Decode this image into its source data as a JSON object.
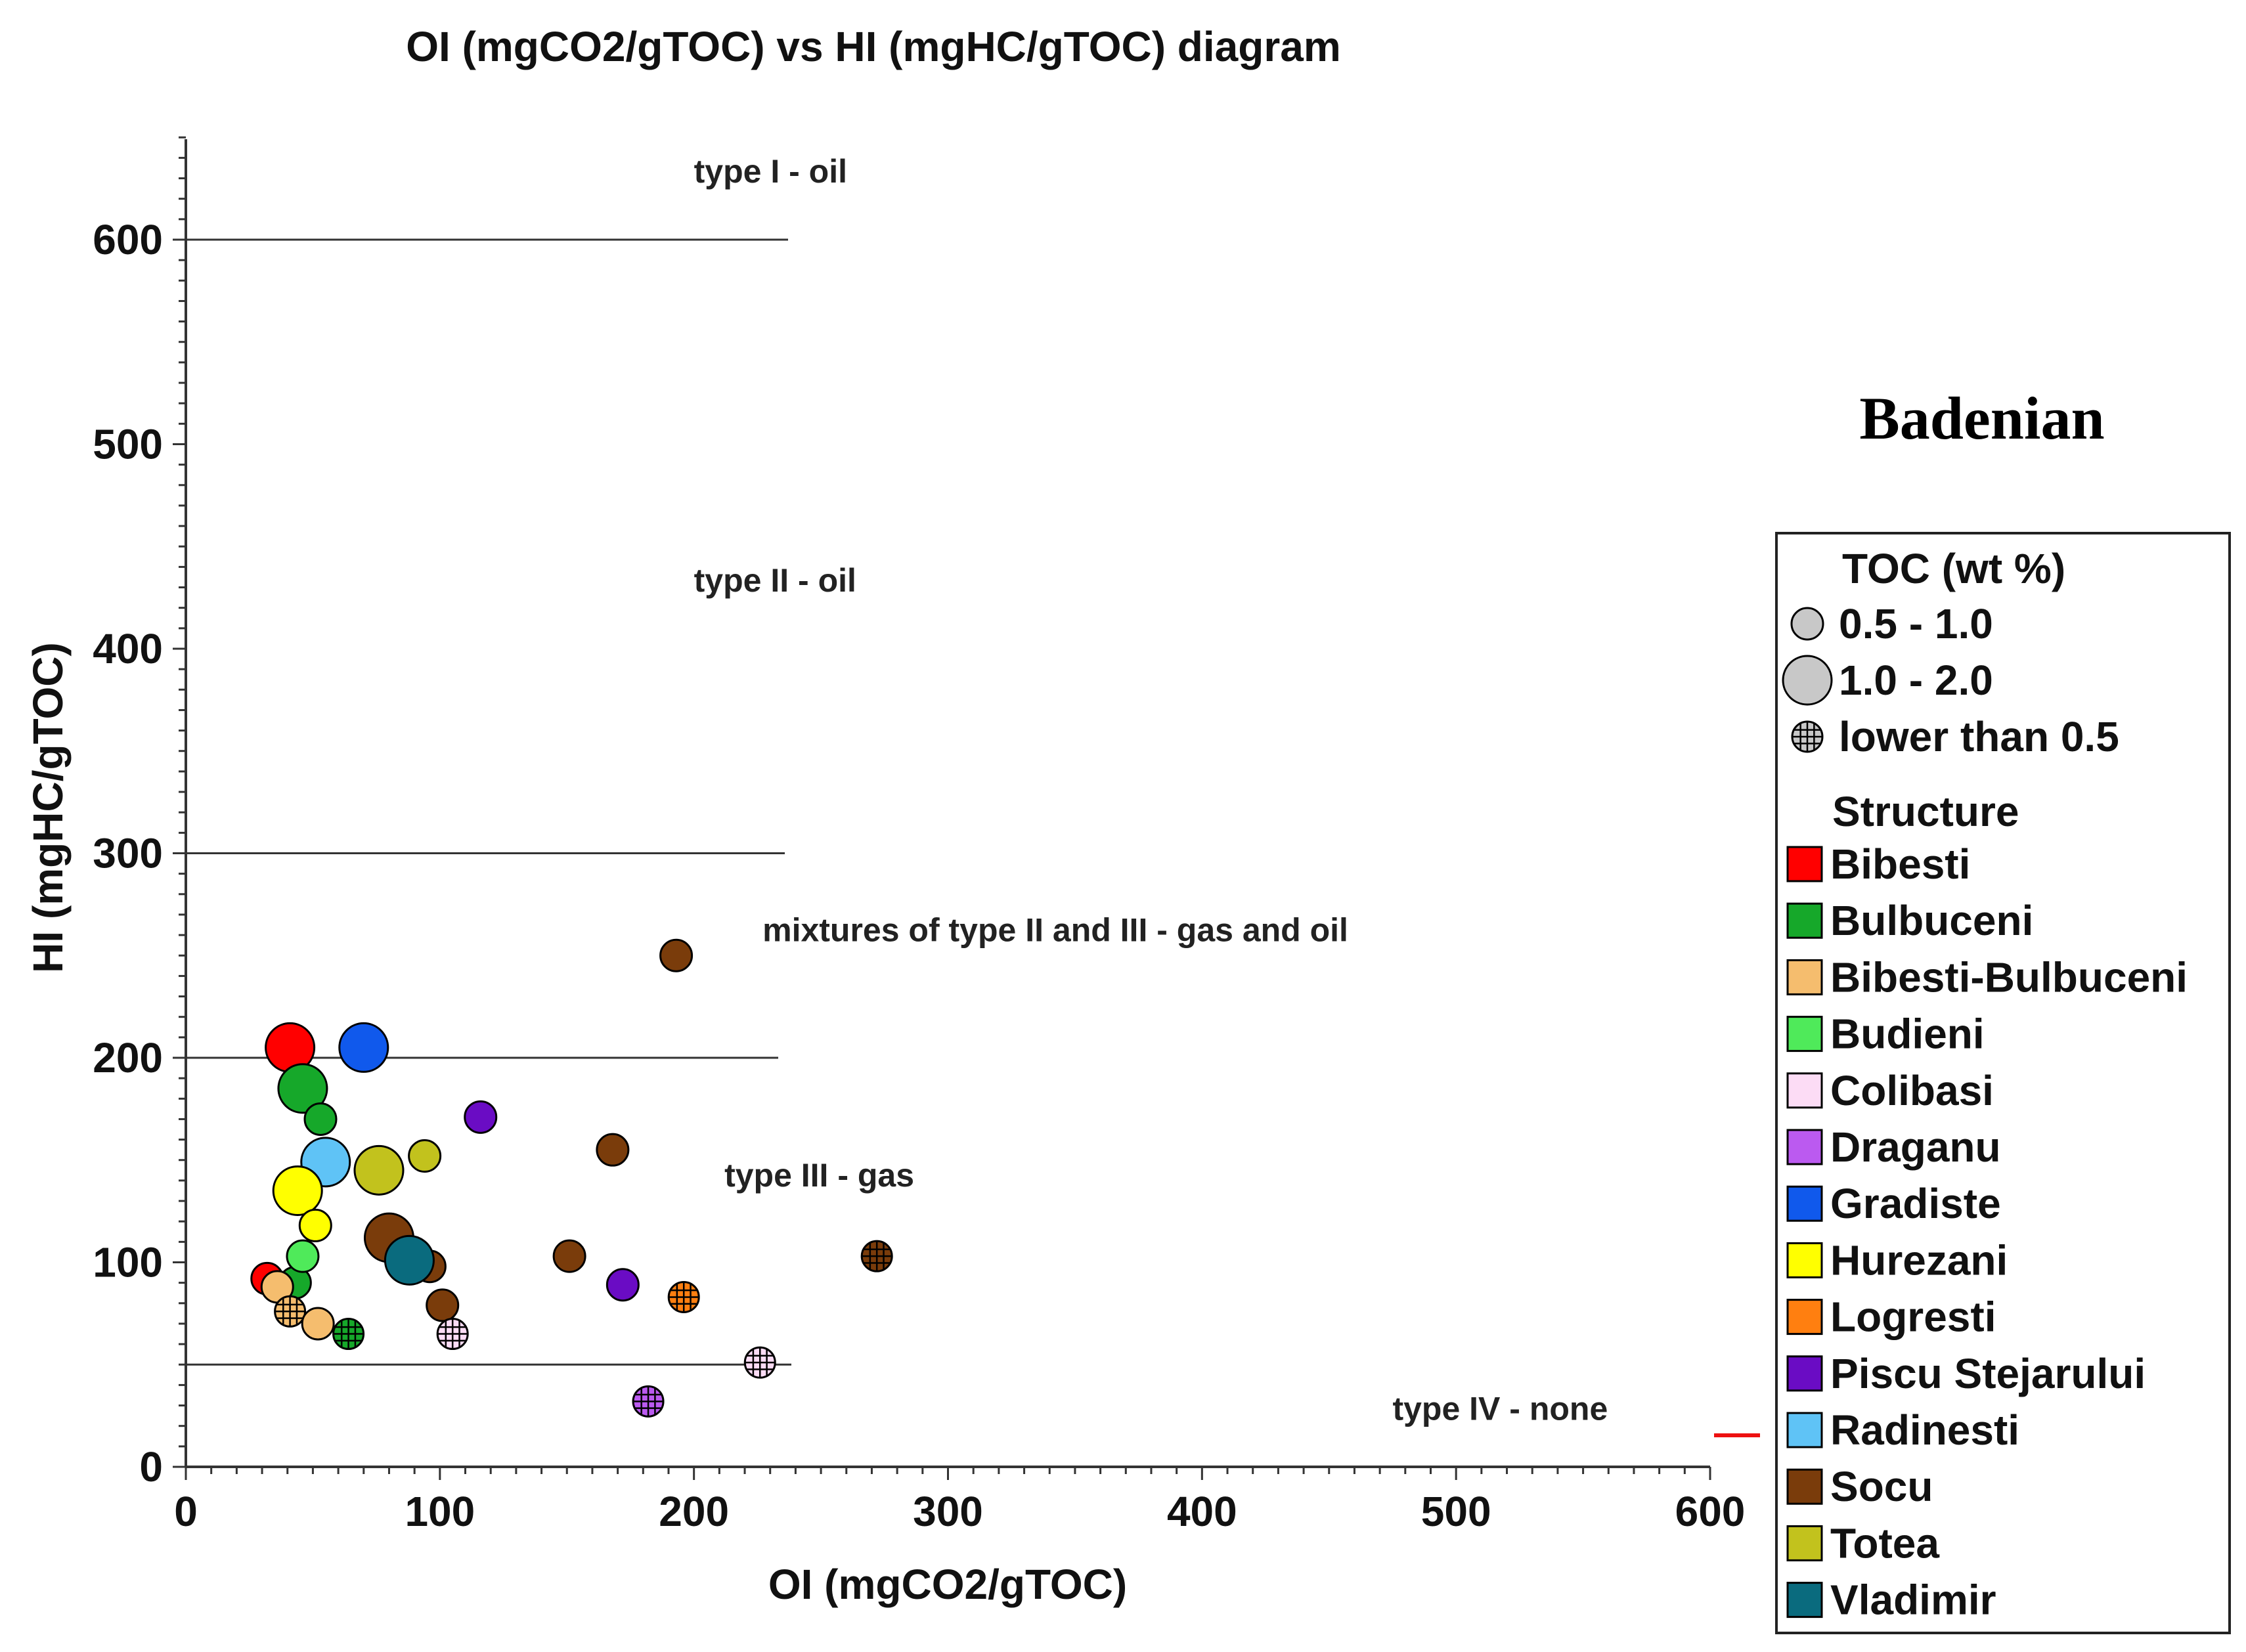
{
  "chart_data": {
    "type": "scatter",
    "title": "OI (mgCO2/gTOC) vs HI (mgHC/gTOC) diagram",
    "xlabel": "OI (mgCO2/gTOC)",
    "ylabel": "HI (mgHC/gTOC)",
    "xlim": [
      0,
      600
    ],
    "ylim": [
      0,
      650
    ],
    "x_ticks": [
      "0",
      "100",
      "200",
      "300",
      "400",
      "500",
      "600"
    ],
    "y_ticks": [
      "0",
      "100",
      "200",
      "300",
      "400",
      "500",
      "600"
    ],
    "annotation": "Badenian",
    "zone_lines": [
      600,
      300,
      200,
      50
    ],
    "zones": [
      {
        "label": "type I - oil",
        "x": 200,
        "y": 628
      },
      {
        "label": "type II - oil",
        "x": 200,
        "y": 428
      },
      {
        "label": "mixtures of type II and III - gas and oil",
        "x": 227,
        "y": 257
      },
      {
        "label": "type III - gas",
        "x": 212,
        "y": 137
      },
      {
        "label": "type IV - none",
        "x": 475,
        "y": 23
      }
    ],
    "legend": {
      "size_title": "TOC (wt %)",
      "size_entries": [
        {
          "label": "0.5 - 1.0",
          "symbol": "small"
        },
        {
          "label": "1.0 - 2.0",
          "symbol": "large"
        },
        {
          "label": "lower than 0.5",
          "symbol": "cross"
        }
      ],
      "structure_title": "Structure",
      "structures": [
        {
          "name": "Bibesti",
          "color": "#ff0000"
        },
        {
          "name": "Bulbuceni",
          "color": "#16a82a"
        },
        {
          "name": "Bibesti-Bulbuceni",
          "color": "#f5bd6e"
        },
        {
          "name": "Budieni",
          "color": "#4fea5a"
        },
        {
          "name": "Colibasi",
          "color": "#fcdcf5"
        },
        {
          "name": "Draganu",
          "color": "#bb5af0"
        },
        {
          "name": "Gradiste",
          "color": "#1059ec"
        },
        {
          "name": "Hurezani",
          "color": "#ffff00"
        },
        {
          "name": "Logresti",
          "color": "#ff7f10"
        },
        {
          "name": "Piscu Stejarului",
          "color": "#6a0cc4"
        },
        {
          "name": "Radinesti",
          "color": "#5fc3f6"
        },
        {
          "name": "Socu",
          "color": "#7a3c0b"
        },
        {
          "name": "Totea",
          "color": "#c2c21d"
        },
        {
          "name": "Vladimir",
          "color": "#0a6b7e"
        }
      ]
    },
    "points": [
      {
        "structure": "Bibesti",
        "oi": 41,
        "hi": 205,
        "toc": "1.0 - 2.0"
      },
      {
        "structure": "Bibesti",
        "oi": 32,
        "hi": 92,
        "toc": "0.5 - 1.0"
      },
      {
        "structure": "Gradiste",
        "oi": 70,
        "hi": 205,
        "toc": "1.0 - 2.0"
      },
      {
        "structure": "Bulbuceni",
        "oi": 46,
        "hi": 185,
        "toc": "1.0 - 2.0"
      },
      {
        "structure": "Bulbuceni",
        "oi": 53,
        "hi": 170,
        "toc": "0.5 - 1.0"
      },
      {
        "structure": "Bulbuceni",
        "oi": 43,
        "hi": 90,
        "toc": "0.5 - 1.0"
      },
      {
        "structure": "Bulbuceni",
        "oi": 64,
        "hi": 65,
        "toc": "lower than 0.5"
      },
      {
        "structure": "Radinesti",
        "oi": 55,
        "hi": 149,
        "toc": "1.0 - 2.0"
      },
      {
        "structure": "Hurezani",
        "oi": 44,
        "hi": 135,
        "toc": "1.0 - 2.0"
      },
      {
        "structure": "Hurezani",
        "oi": 51,
        "hi": 118,
        "toc": "0.5 - 1.0"
      },
      {
        "structure": "Budieni",
        "oi": 46,
        "hi": 103,
        "toc": "0.5 - 1.0"
      },
      {
        "structure": "Bibesti-Bulbuceni",
        "oi": 36,
        "hi": 88,
        "toc": "0.5 - 1.0"
      },
      {
        "structure": "Bibesti-Bulbuceni",
        "oi": 41,
        "hi": 76,
        "toc": "lower than 0.5"
      },
      {
        "structure": "Bibesti-Bulbuceni",
        "oi": 52,
        "hi": 70,
        "toc": "0.5 - 1.0"
      },
      {
        "structure": "Totea",
        "oi": 76,
        "hi": 145,
        "toc": "1.0 - 2.0"
      },
      {
        "structure": "Totea",
        "oi": 94,
        "hi": 152,
        "toc": "0.5 - 1.0"
      },
      {
        "structure": "Socu",
        "oi": 80,
        "hi": 112,
        "toc": "1.0 - 2.0"
      },
      {
        "structure": "Socu",
        "oi": 96,
        "hi": 98,
        "toc": "0.5 - 1.0"
      },
      {
        "structure": "Socu",
        "oi": 101,
        "hi": 79,
        "toc": "0.5 - 1.0"
      },
      {
        "structure": "Socu",
        "oi": 151,
        "hi": 103,
        "toc": "0.5 - 1.0"
      },
      {
        "structure": "Socu",
        "oi": 168,
        "hi": 155,
        "toc": "0.5 - 1.0"
      },
      {
        "structure": "Socu",
        "oi": 193,
        "hi": 250,
        "toc": "0.5 - 1.0"
      },
      {
        "structure": "Socu",
        "oi": 272,
        "hi": 103,
        "toc": "lower than 0.5"
      },
      {
        "structure": "Vladimir",
        "oi": 88,
        "hi": 101,
        "toc": "1.0 - 2.0"
      },
      {
        "structure": "Piscu Stejarului",
        "oi": 116,
        "hi": 171,
        "toc": "0.5 - 1.0"
      },
      {
        "structure": "Piscu Stejarului",
        "oi": 172,
        "hi": 89,
        "toc": "0.5 - 1.0"
      },
      {
        "structure": "Colibasi",
        "oi": 105,
        "hi": 65,
        "toc": "lower than 0.5"
      },
      {
        "structure": "Colibasi",
        "oi": 226,
        "hi": 51,
        "toc": "lower than 0.5"
      },
      {
        "structure": "Draganu",
        "oi": 182,
        "hi": 32,
        "toc": "lower than 0.5"
      },
      {
        "structure": "Logresti",
        "oi": 196,
        "hi": 83,
        "toc": "lower than 0.5"
      }
    ]
  }
}
